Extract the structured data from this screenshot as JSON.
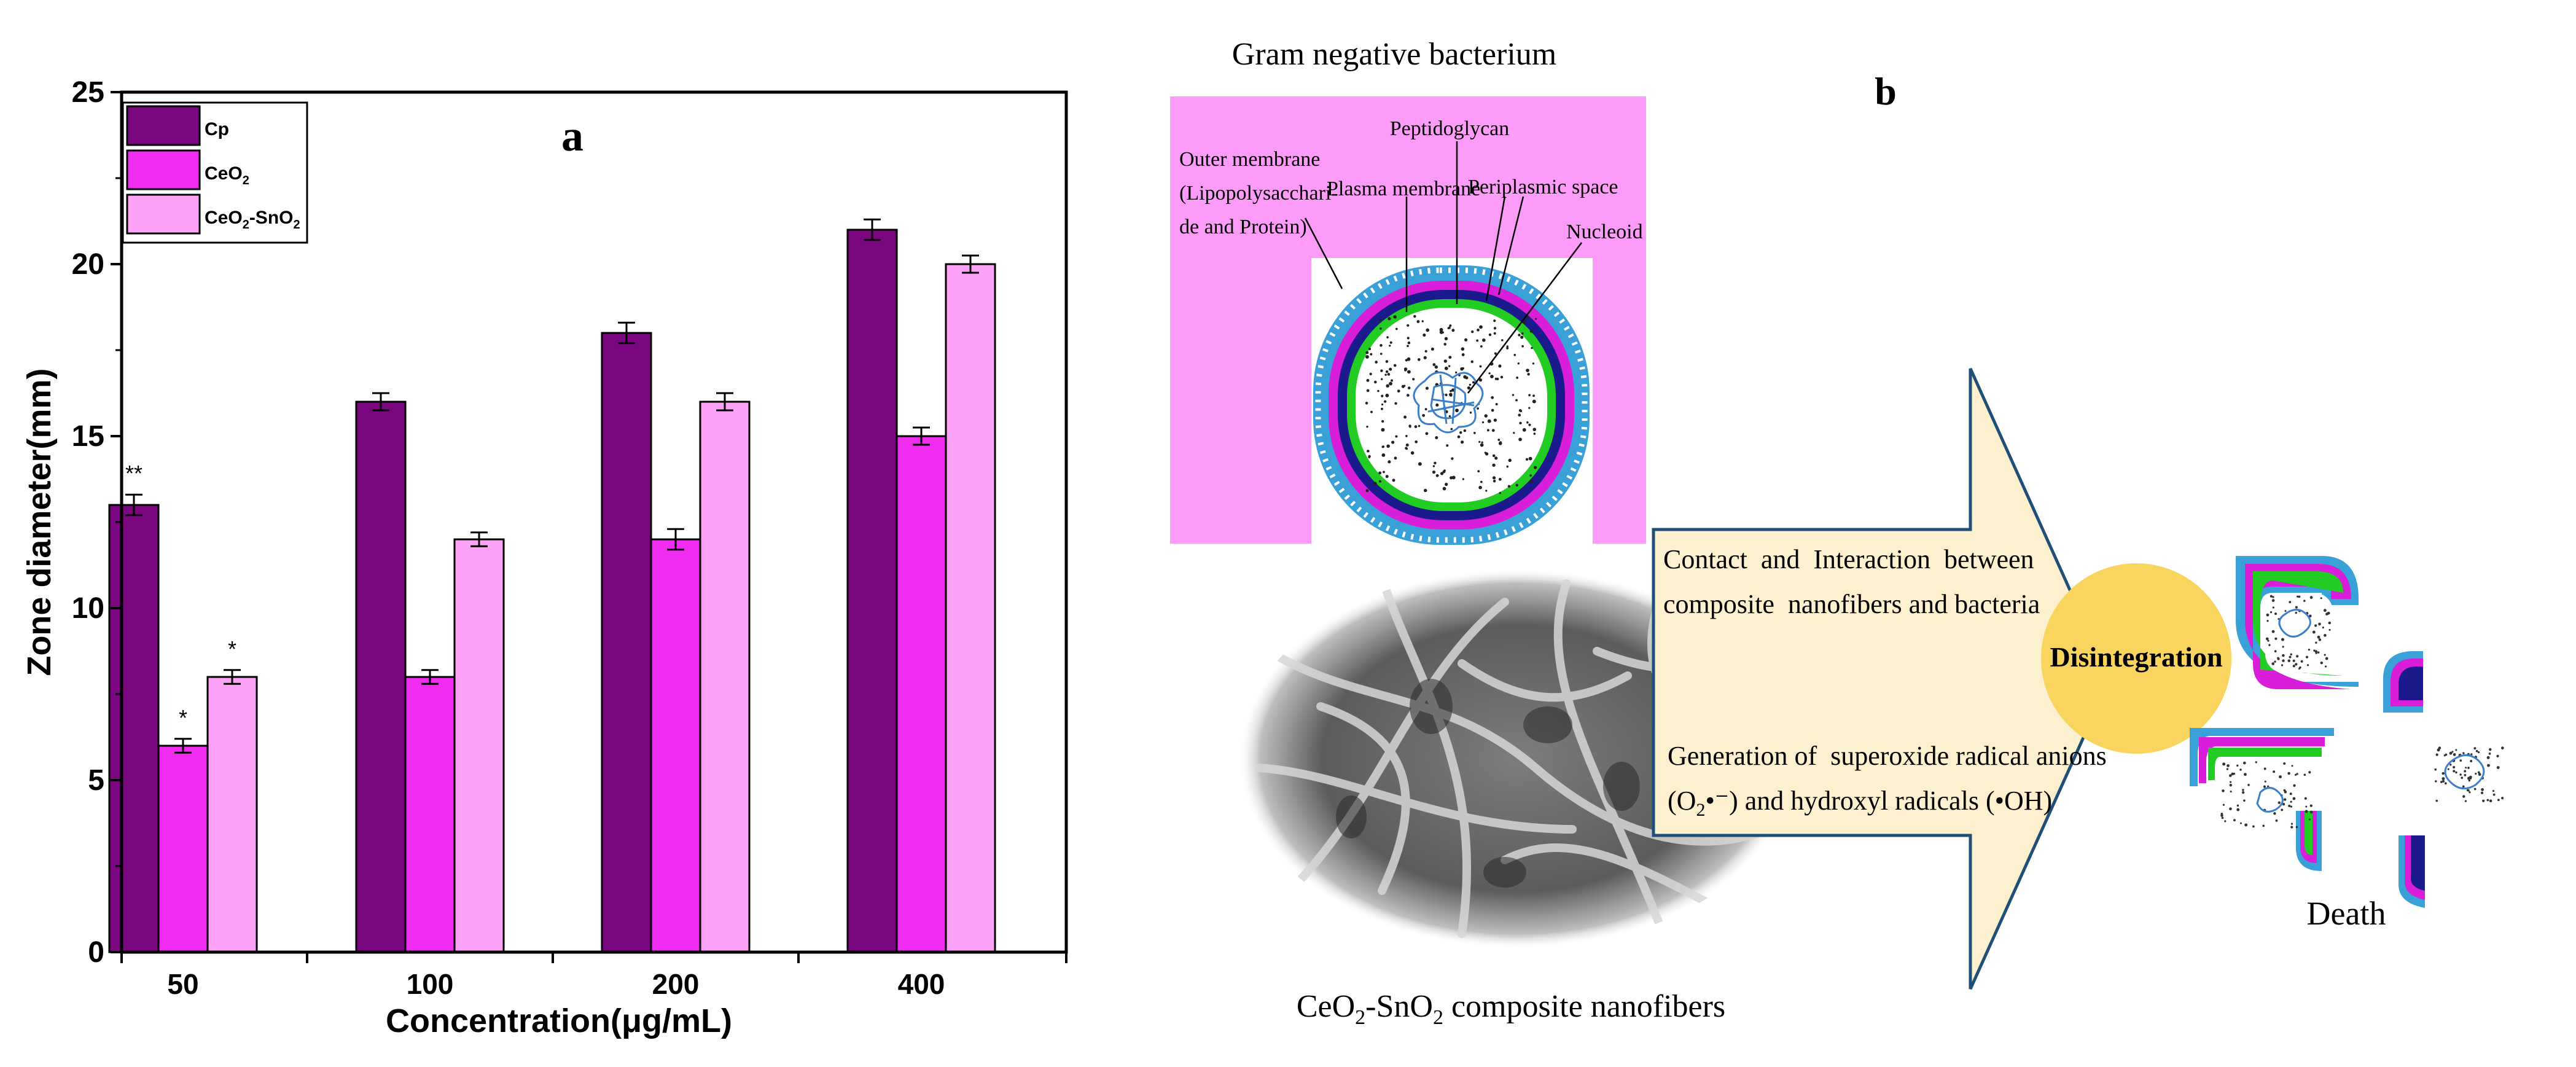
{
  "chart_data": {
    "type": "bar",
    "panel_label": "a",
    "xlabel": "Concentration(μg/mL)",
    "ylabel": "Zone diameter(mm)",
    "ylim": [
      0,
      25
    ],
    "yticks": [
      0,
      5,
      10,
      15,
      20,
      25
    ],
    "categories": [
      "50",
      "100",
      "200",
      "400"
    ],
    "series": [
      {
        "name": "Cp",
        "color": "#7a0680",
        "values": [
          13,
          16,
          18,
          21
        ],
        "errors": [
          0.3,
          0.25,
          0.3,
          0.3
        ],
        "significance": [
          "**",
          "",
          "",
          ""
        ]
      },
      {
        "name": "CeO2",
        "color": "#f02cf0",
        "values": [
          6,
          8,
          12,
          15
        ],
        "errors": [
          0.2,
          0.2,
          0.3,
          0.25
        ],
        "significance": [
          "*",
          "",
          "",
          ""
        ]
      },
      {
        "name": "CeO2-SnO2",
        "color": "#fca3f8",
        "values": [
          8,
          12,
          16,
          20
        ],
        "errors": [
          0.2,
          0.2,
          0.25,
          0.25
        ],
        "significance": [
          "*",
          "",
          "",
          ""
        ]
      }
    ],
    "legend": {
      "placement": "top-left"
    },
    "grid": false
  },
  "diagram": {
    "panel_label": "b",
    "bacterium_title": "Gram negative bacterium",
    "labels": {
      "peptidoglycan": "Peptidoglycan",
      "outer_membrane_1": "Outer membrane",
      "outer_membrane_2": "(Lipopolysacchari-",
      "outer_membrane_3": "de and Protein)",
      "plasma_membrane": "Plasma membrane",
      "periplasmic_space": "Periplasmic space",
      "nucleoid": "Nucleoid"
    },
    "nanofiber_caption": "CeO2-SnO2 composite nanofibers",
    "arrow_text": {
      "contact_1": "Contact  and  Interaction  between",
      "contact_2": "composite  nanofibers and bacteria",
      "generation_1": "Generation of  superoxide radical anions",
      "generation_2": "(O2•⁻) and hydroxyl radicals (•OH)"
    },
    "disintegration": "Disintegration",
    "death": "Death",
    "colors": {
      "bacterium_bg": "#fc9cf8",
      "arrow_fill": "#fdf0cf",
      "arrow_stroke": "#1f4e79",
      "disintegration_circle": "#f9d45e",
      "membrane_blue": "#3aa0d8",
      "membrane_magenta": "#d81ed8",
      "membrane_navy": "#1a1a8c",
      "membrane_green": "#22cc22"
    }
  }
}
